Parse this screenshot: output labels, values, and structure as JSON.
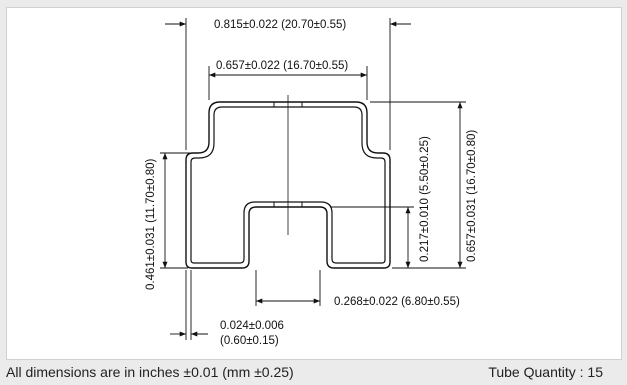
{
  "dimensions": {
    "overall_width": "0.815±0.022 (20.70±0.55)",
    "top_width": "0.657±0.022 (16.70±0.55)",
    "overall_height": "0.657±0.031 (16.70±0.80)",
    "left_height": "0.461±0.031 (11.70±0.80)",
    "slot_depth": "0.217±0.010 (5.50±0.25)",
    "slot_width": "0.268±0.022 (6.80±0.55)",
    "wall_thickness_in": "0.024±0.006",
    "wall_thickness_mm": "(0.60±0.15)"
  },
  "footer": {
    "note": "All dimensions are in inches ±0.01 (mm ±0.25)",
    "quantity": "Tube Quantity : 15"
  }
}
